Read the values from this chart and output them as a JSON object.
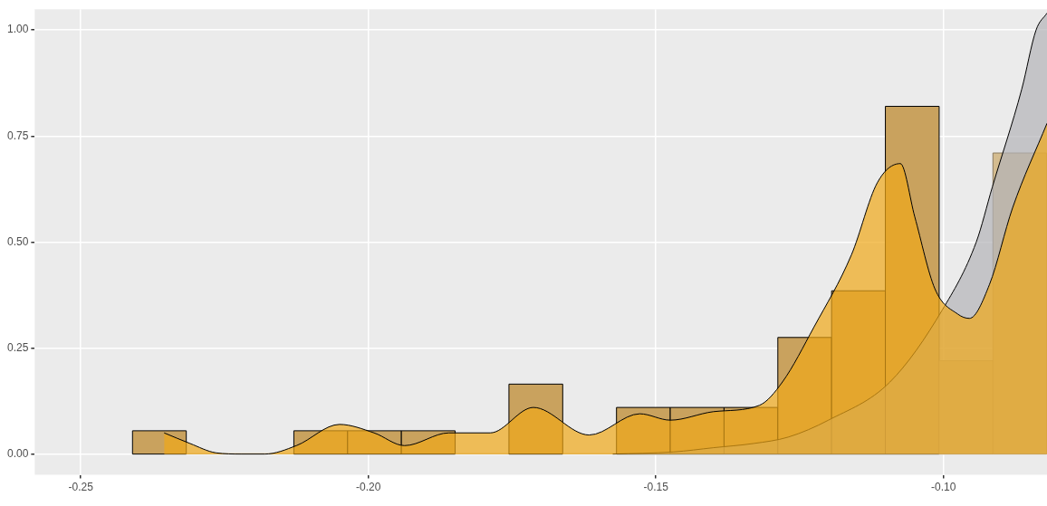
{
  "chart_data": {
    "type": "histogram",
    "xlim": [
      -0.258,
      -0.082
    ],
    "ylim": [
      -0.049,
      1.049
    ],
    "xticks": [
      {
        "value": -0.25,
        "label": "-0.25"
      },
      {
        "value": -0.2,
        "label": "-0.20"
      },
      {
        "value": -0.15,
        "label": "-0.15"
      },
      {
        "value": -0.1,
        "label": "-0.10"
      }
    ],
    "yticks": [
      {
        "value": 0,
        "label": "0.00"
      },
      {
        "value": 0.25,
        "label": "0.25"
      },
      {
        "value": 0.5,
        "label": "0.50"
      },
      {
        "value": 0.75,
        "label": "0.75"
      },
      {
        "value": 1,
        "label": "1.00"
      }
    ],
    "grid": true,
    "legend": false,
    "series": [
      {
        "color": "#c9a25e",
        "bins": [
          -0.241,
          -0.23165,
          -0.2223,
          -0.21295,
          -0.2036,
          -0.19425,
          -0.1849,
          -0.17555,
          -0.1662,
          -0.15685,
          -0.1475,
          -0.13815,
          -0.1288,
          -0.11945,
          -0.1101,
          -0.10075
        ],
        "values": [
          0.055,
          0,
          0,
          0.055,
          0.055,
          0.055,
          0,
          0.165,
          0,
          0.11,
          0.11,
          0.11,
          0.275,
          0.385,
          0.82
        ]
      },
      {
        "color": "#d4bc8f",
        "bins": [
          -0.10075,
          -0.0914,
          -0.08205
        ],
        "values": [
          0.22,
          0.71
        ]
      },
      {
        "type": "area",
        "color": "#f0a818",
        "x": [
          -0.2355,
          -0.231,
          -0.2265,
          -0.222,
          -0.218,
          -0.2125,
          -0.205,
          -0.199,
          -0.1937,
          -0.186,
          -0.1788,
          -0.1713,
          -0.1616,
          -0.1528,
          -0.1475,
          -0.14,
          -0.132,
          -0.128,
          -0.1225,
          -0.116,
          -0.1115,
          -0.1075,
          -0.105,
          -0.1015,
          -0.0975,
          -0.0955,
          -0.092,
          -0.088,
          -0.082
        ],
        "values": [
          0.05,
          0.025,
          0.003,
          0,
          0,
          0.02,
          0.07,
          0.05,
          0.02,
          0.05,
          0.05,
          0.11,
          0.045,
          0.095,
          0.08,
          0.1,
          0.115,
          0.17,
          0.3,
          0.47,
          0.64,
          0.685,
          0.56,
          0.39,
          0.33,
          0.32,
          0.4,
          0.58,
          0.78
        ]
      },
      {
        "type": "area",
        "color": "#b4b4b8",
        "x": [
          -0.1575,
          -0.147,
          -0.14,
          -0.133,
          -0.127,
          -0.12,
          -0.1093,
          -0.1002,
          -0.0943,
          -0.0915,
          -0.0864,
          -0.0839,
          -0.082
        ],
        "values": [
          0,
          0.005,
          0.015,
          0.025,
          0.04,
          0.08,
          0.17,
          0.34,
          0.5,
          0.63,
          0.86,
          1.0,
          1.04
        ]
      }
    ]
  }
}
